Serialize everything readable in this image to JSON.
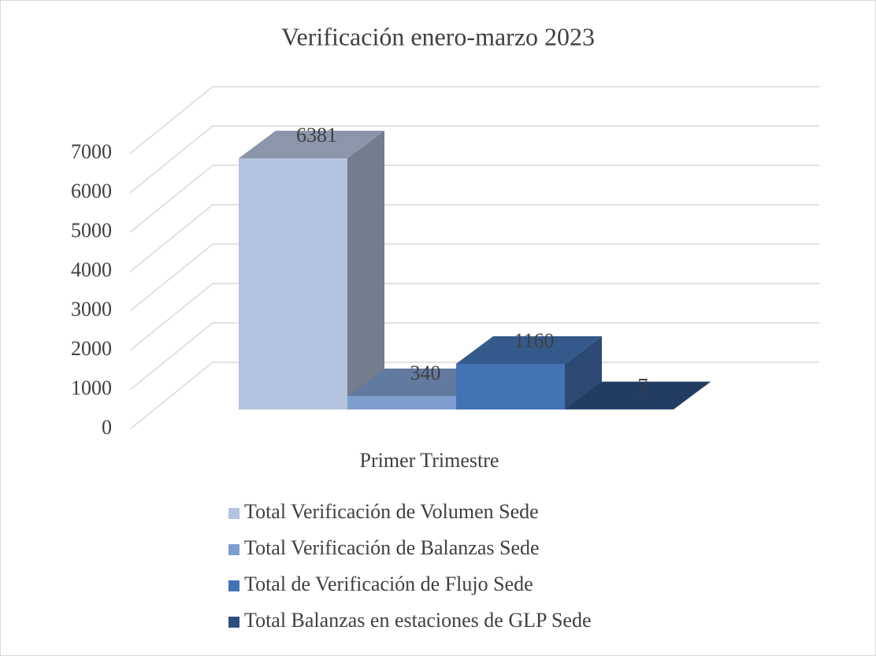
{
  "chart_data": {
    "type": "bar3d",
    "title": "Verificación enero-marzo 2023",
    "categories": [
      "Primer Trimestre"
    ],
    "series": [
      {
        "name": "Total Verificación de Volumen Sede",
        "color": "#b4c3de",
        "values": [
          6381
        ]
      },
      {
        "name": "Total Verificación de Balanzas Sede",
        "color": "#7f9ed0",
        "values": [
          340
        ]
      },
      {
        "name": "Total de Verificación de Flujo Sede",
        "color": "#4473b5",
        "values": [
          1160
        ]
      },
      {
        "name": "Total Balanzas en estaciones de GLP Sede",
        "color": "#2d4f7f",
        "values": [
          7
        ]
      }
    ],
    "ylim": [
      0,
      7000
    ],
    "yticks": [
      0,
      1000,
      2000,
      3000,
      4000,
      5000,
      6000,
      7000
    ],
    "grid": true,
    "legend": "bottom"
  }
}
